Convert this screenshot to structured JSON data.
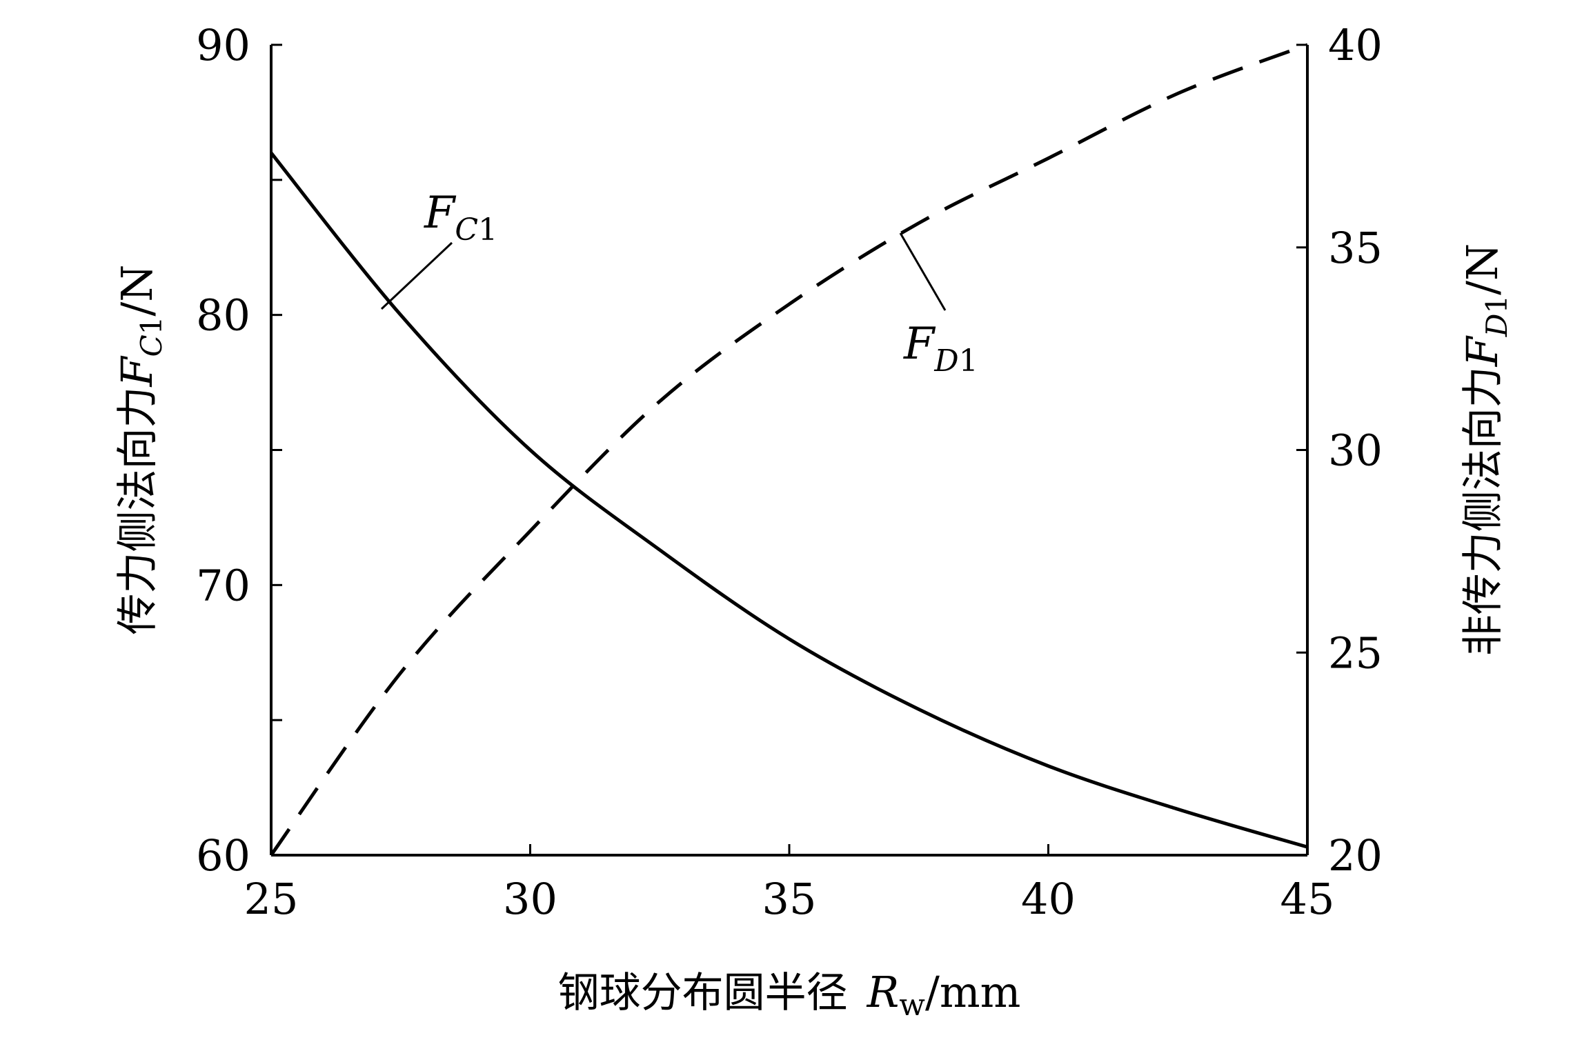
{
  "chart_data": {
    "type": "line",
    "title": "",
    "x": [
      25,
      27.5,
      30,
      32.5,
      35,
      37.5,
      40,
      42.5,
      45
    ],
    "xlim": [
      25,
      45
    ],
    "xticks": [
      "25",
      "30",
      "35",
      "40",
      "45"
    ],
    "xlabel": {
      "prefix": "钢球分布圆半径",
      "var": "R",
      "sub": "w",
      "unit": "/mm"
    },
    "y_left": {
      "lim": [
        60,
        90
      ],
      "ticks": [
        "60",
        "70",
        "80",
        "90"
      ],
      "label": {
        "prefix": "传力侧法向力",
        "var": "F",
        "sub": "C",
        "subnum": "1",
        "unit": "/N"
      }
    },
    "y_right": {
      "lim": [
        20,
        40
      ],
      "ticks": [
        "20",
        "25",
        "30",
        "35",
        "40"
      ],
      "label": {
        "prefix": "非传力侧法向力",
        "var": "F",
        "sub": "D",
        "subnum": "1",
        "unit": "/N"
      }
    },
    "grid": false,
    "series": [
      {
        "name": "FC1",
        "label_var": "F",
        "label_sub": "C",
        "label_subnum": "1",
        "axis": "left",
        "style": "solid",
        "color": "#000000",
        "values": [
          86.0,
          80.0,
          75.0,
          71.3,
          68.0,
          65.4,
          63.3,
          61.7,
          60.3
        ]
      },
      {
        "name": "FD1",
        "label_var": "F",
        "label_sub": "D",
        "label_subnum": "1",
        "axis": "right",
        "style": "dashed",
        "color": "#000000",
        "values": [
          20.0,
          24.5,
          28.0,
          31.2,
          33.6,
          35.6,
          37.2,
          38.8,
          40.0
        ]
      }
    ]
  }
}
